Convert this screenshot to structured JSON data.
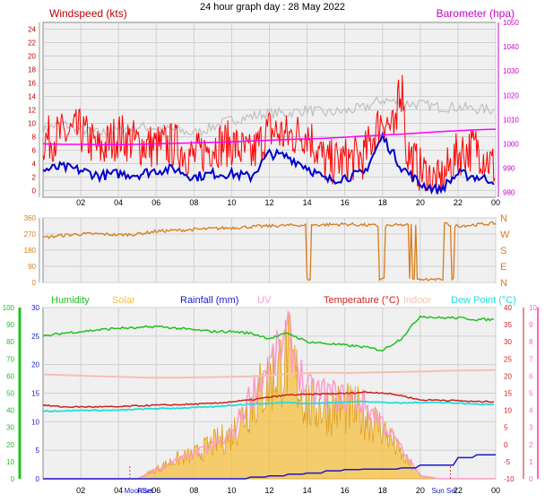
{
  "title": "24 hour graph day : 28 May 2022",
  "x_ticks": [
    "02",
    "04",
    "06",
    "08",
    "10",
    "12",
    "14",
    "16",
    "18",
    "20",
    "22",
    "00"
  ],
  "colors": {
    "wind_speed": "#ff0000",
    "wind_avg": "#0000cc",
    "wind_gust": "#c0c0c0",
    "barometer": "#ff00ff",
    "direction": "#d97b1a",
    "humidity": "#22c022",
    "solar": "#f5c040",
    "rainfall": "#1a1acc",
    "uv": "#ff99cc",
    "temperature": "#cc2222",
    "indoor": "#f5c0b0",
    "dew_point": "#22dddd",
    "axis_left1": "#c00000",
    "axis_left2": "#d97b1a",
    "axis_left3": "#22c022",
    "axis_right1": "#cc00cc",
    "axis_right3": "#ff66aa"
  },
  "chart_data": [
    {
      "type": "line",
      "panel": "wind",
      "left_axis_label": "Windspeed (kts)",
      "right_axis_label": "Barometer (hpa)",
      "ylim": [
        -1,
        25
      ],
      "yticks": [
        0,
        2,
        4,
        6,
        8,
        10,
        12,
        14,
        16,
        18,
        20,
        22,
        24
      ],
      "y2lim": [
        978,
        1050
      ],
      "y2ticks": [
        980,
        990,
        1000,
        1010,
        1020,
        1030,
        1040,
        1050
      ],
      "x": [
        0,
        1,
        2,
        3,
        4,
        5,
        6,
        7,
        8,
        9,
        10,
        11,
        12,
        13,
        14,
        15,
        16,
        17,
        18,
        19,
        20,
        21,
        22,
        23,
        24
      ],
      "series": [
        {
          "name": "Windspeed (kts)",
          "values": [
            7.5,
            8.2,
            8.8,
            5.9,
            8.3,
            7.0,
            6.5,
            6.8,
            4.9,
            6.8,
            7.0,
            5.0,
            9.0,
            8.0,
            8.7,
            4.0,
            4.5,
            5.0,
            11.0,
            7.0,
            3.0,
            1.0,
            5.5,
            6.5,
            3.2
          ]
        },
        {
          "name": "Gust",
          "values": [
            9.0,
            10.0,
            9.0,
            8.5,
            9.0,
            9.5,
            9.3,
            9.0,
            8.5,
            9.5,
            10.5,
            11.0,
            11.5,
            11.5,
            12.0,
            11.5,
            11.8,
            12.3,
            13.5,
            13.0,
            12.8,
            12.4,
            12.4,
            12.1,
            12.0
          ]
        },
        {
          "name": "Average",
          "values": [
            3.0,
            3.5,
            3.0,
            2.2,
            2.5,
            2.4,
            3.0,
            3.2,
            2.0,
            2.5,
            2.5,
            2.0,
            5.5,
            5.0,
            3.5,
            1.5,
            2.0,
            2.5,
            8.0,
            3.5,
            1.0,
            0.0,
            2.5,
            2.0,
            1.5
          ]
        },
        {
          "name": "Barometer (hpa)",
          "axis": "right",
          "values": [
            1000.0,
            999.8,
            999.8,
            999.7,
            999.7,
            999.8,
            1000.0,
            1000.2,
            1000.4,
            1000.6,
            1000.8,
            1001.2,
            1001.5,
            1001.8,
            1002.0,
            1002.3,
            1002.7,
            1003.2,
            1003.6,
            1004.0,
            1004.5,
            1005.0,
            1005.4,
            1005.8,
            1006.0
          ]
        }
      ]
    },
    {
      "type": "line",
      "panel": "direction",
      "ylim": [
        0,
        360
      ],
      "yticks": [
        0,
        90,
        180,
        270,
        360
      ],
      "right_labels": [
        "N",
        "W",
        "S",
        "E",
        "N"
      ],
      "x": [
        0,
        1,
        2,
        3,
        4,
        5,
        6,
        7,
        8,
        9,
        10,
        11,
        12,
        13,
        14,
        15,
        16,
        17,
        18,
        19,
        20,
        21,
        22,
        23,
        24
      ],
      "series": [
        {
          "name": "Wind direction",
          "values": [
            250,
            262,
            270,
            270,
            265,
            270,
            285,
            290,
            295,
            300,
            305,
            310,
            315,
            318,
            320,
            322,
            325,
            320,
            315,
            320,
            320,
            330,
            315,
            322,
            330
          ]
        }
      ]
    },
    {
      "type": "line",
      "panel": "weather",
      "legend": [
        "Humidity",
        "Solar",
        "Rainfall (mm)",
        "UV",
        "Temperature (°C)",
        "Indoor",
        "Dew Point (°C)"
      ],
      "humidity_axis": {
        "ylim": [
          0,
          100
        ],
        "ticks": [
          0,
          10,
          20,
          30,
          40,
          50,
          60,
          70,
          80,
          90,
          100
        ]
      },
      "rain_axis": {
        "ylim": [
          0,
          30
        ],
        "ticks": [
          0,
          5,
          10,
          15,
          20,
          25,
          30
        ]
      },
      "temp_axis": {
        "ylim": [
          -10,
          40
        ],
        "ticks": [
          -10,
          -5,
          0,
          5,
          10,
          15,
          20,
          25,
          30,
          35,
          40
        ]
      },
      "uv_axis": {
        "ylim": [
          0,
          10
        ],
        "ticks": [
          0,
          1,
          2,
          3,
          4,
          5,
          6,
          7,
          8,
          9,
          10
        ]
      },
      "x": [
        0,
        1,
        2,
        3,
        4,
        5,
        6,
        7,
        8,
        9,
        10,
        11,
        12,
        13,
        14,
        15,
        16,
        17,
        18,
        19,
        20,
        21,
        22,
        23,
        24
      ],
      "series": [
        {
          "name": "Humidity",
          "axis": "humidity",
          "values": [
            83,
            85,
            86,
            87,
            88,
            88,
            89,
            88,
            87,
            86,
            86,
            85,
            82,
            85,
            80,
            79,
            78,
            77,
            75,
            82,
            95,
            94,
            94,
            93,
            93
          ]
        },
        {
          "name": "Solar",
          "axis": "uv",
          "values": [
            0,
            0,
            0,
            0,
            0,
            0,
            0.6,
            1.2,
            1.5,
            2.2,
            2.8,
            4.7,
            6.2,
            7.8,
            4.6,
            4.5,
            4.4,
            4.1,
            3.2,
            1.5,
            0.2,
            0,
            0,
            0,
            0
          ]
        },
        {
          "name": "Rainfall (mm)",
          "axis": "rain",
          "values": [
            0,
            0,
            0,
            0,
            0,
            0,
            0,
            0,
            0,
            0,
            0,
            0.3,
            0.5,
            0.8,
            1.0,
            1.4,
            1.6,
            1.7,
            1.7,
            1.9,
            2.4,
            2.4,
            3.7,
            4.2,
            4.2
          ]
        },
        {
          "name": "UV",
          "axis": "uv",
          "values": [
            0,
            0,
            0,
            0,
            0,
            0,
            0.5,
            1.0,
            1.4,
            1.9,
            2.5,
            4.9,
            6.6,
            8.2,
            5.1,
            5.0,
            4.7,
            4.4,
            3.3,
            1.7,
            0.2,
            0,
            0,
            0,
            0
          ]
        },
        {
          "name": "Temperature (°C)",
          "axis": "temp",
          "values": [
            11.5,
            11.0,
            11.0,
            11.0,
            11.0,
            11.3,
            11.5,
            11.6,
            11.8,
            12.0,
            12.5,
            13.0,
            13.8,
            14.5,
            14.6,
            14.8,
            14.9,
            15.3,
            15.1,
            14.3,
            13.0,
            13.0,
            12.8,
            12.5,
            12.6
          ]
        },
        {
          "name": "Indoor",
          "axis": "temp",
          "values": [
            20.5,
            20.3,
            20.1,
            19.9,
            19.8,
            19.6,
            19.5,
            19.5,
            19.6,
            19.7,
            19.8,
            19.9,
            20.2,
            20.6,
            20.9,
            21.0,
            20.9,
            21.0,
            21.1,
            21.2,
            21.3,
            21.5,
            21.6,
            21.6,
            21.8
          ]
        },
        {
          "name": "Dew Point (°C)",
          "axis": "temp",
          "values": [
            9.8,
            9.8,
            10.0,
            10.0,
            10.0,
            10.3,
            10.5,
            10.6,
            10.8,
            11.0,
            11.5,
            11.8,
            12.0,
            12.3,
            12.0,
            12.1,
            12.4,
            12.6,
            12.3,
            12.1,
            12.3,
            12.3,
            12.1,
            11.8,
            11.8
          ]
        }
      ],
      "annotations": [
        "MoonSet",
        "Rise",
        "Sun Set"
      ]
    }
  ]
}
